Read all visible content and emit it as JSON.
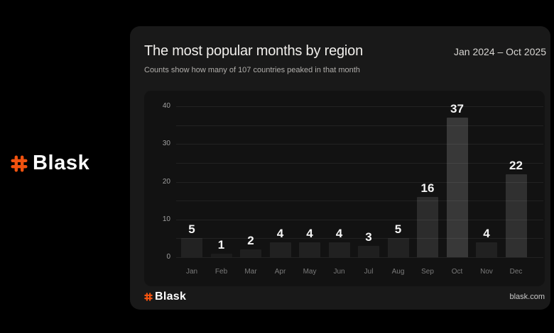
{
  "brand": {
    "name": "Blask",
    "accent_color": "#F0520F"
  },
  "panel": {
    "title": "The most popular months by region",
    "subtitle": "Counts show how many of 107 countries peaked in that month",
    "date_range": "Jan 2024 – Oct 2025"
  },
  "footer": {
    "brand": "Blask",
    "site": "blask.com"
  },
  "chart_data": {
    "type": "bar",
    "title": "The most popular months by region",
    "subtitle": "Counts show how many of 107 countries peaked in that month",
    "categories": [
      "Jan",
      "Feb",
      "Mar",
      "Apr",
      "May",
      "Jun",
      "Jul",
      "Aug",
      "Sep",
      "Oct",
      "Nov",
      "Dec"
    ],
    "values": [
      5,
      1,
      2,
      4,
      4,
      4,
      3,
      5,
      16,
      37,
      4,
      22
    ],
    "xlabel": "",
    "ylabel": "",
    "ylim": [
      0,
      40
    ],
    "y_ticks": [
      0,
      10,
      20,
      30,
      40
    ],
    "gridline_step": 5,
    "grid": true,
    "legend": false,
    "value_labels_shown": true,
    "bar_color_note": "translucent white bars, opacity scales with value",
    "background_color": "#121212"
  }
}
